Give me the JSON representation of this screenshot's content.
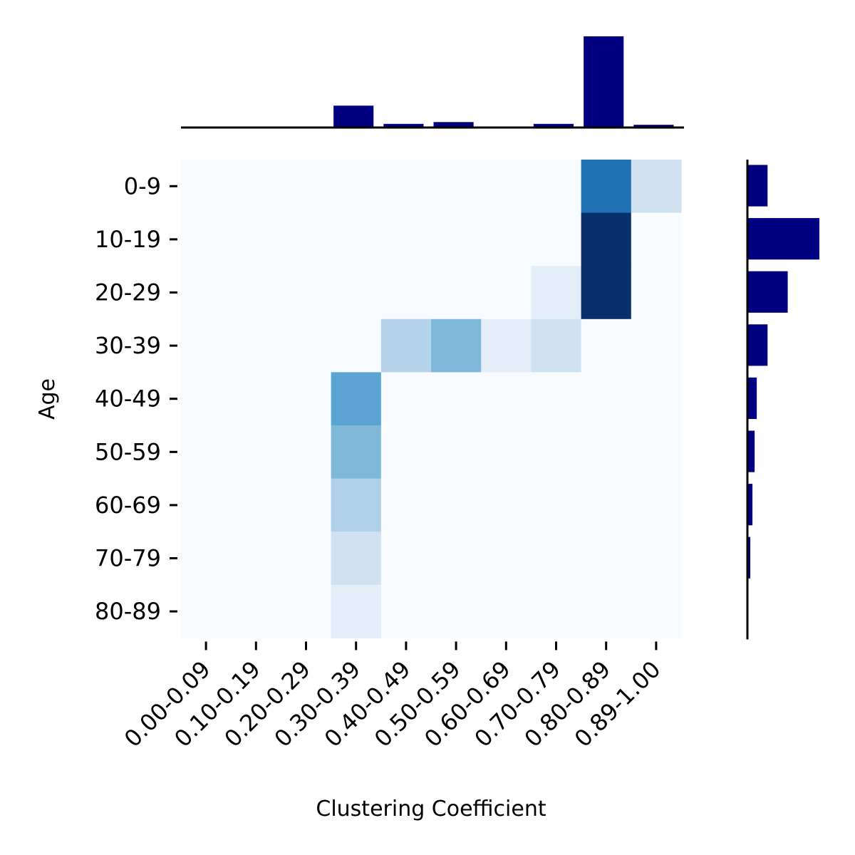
{
  "colors": {
    "hist_bar": "#000080",
    "heatmap_min": "#f7fbff",
    "heatmap_max": "#08306b",
    "axis": "#000000"
  },
  "chart_data": {
    "type": "heatmap",
    "xlabel": "Clustering Coefficient",
    "ylabel": "Age",
    "x_categories": [
      "0.00-0.09",
      "0.10-0.19",
      "0.20-0.29",
      "0.30-0.39",
      "0.40-0.49",
      "0.50-0.59",
      "0.60-0.69",
      "0.70-0.79",
      "0.80-0.89",
      "0.89-1.00"
    ],
    "y_categories": [
      "0-9",
      "10-19",
      "20-29",
      "30-39",
      "40-49",
      "50-59",
      "60-69",
      "70-79",
      "80-89"
    ],
    "colormap": "Blues",
    "heatmap_values": [
      [
        0,
        0,
        0,
        0,
        0,
        0,
        0,
        0,
        0.75,
        0.2
      ],
      [
        0,
        0,
        0,
        0,
        0,
        0,
        0,
        0,
        1.0,
        0
      ],
      [
        0,
        0,
        0,
        0,
        0,
        0,
        0,
        0.1,
        1.0,
        0
      ],
      [
        0,
        0,
        0,
        0,
        0.3,
        0.45,
        0.1,
        0.2,
        0,
        0
      ],
      [
        0,
        0,
        0,
        0.55,
        0,
        0,
        0,
        0,
        0,
        0
      ],
      [
        0,
        0,
        0,
        0.45,
        0,
        0,
        0,
        0,
        0,
        0
      ],
      [
        0,
        0,
        0,
        0.32,
        0,
        0,
        0,
        0,
        0,
        0
      ],
      [
        0,
        0,
        0,
        0.2,
        0,
        0,
        0,
        0,
        0,
        0
      ],
      [
        0,
        0,
        0,
        0.1,
        0,
        0,
        0,
        0,
        0,
        0
      ]
    ],
    "top_histogram": {
      "categories": [
        "0.00-0.09",
        "0.10-0.19",
        "0.20-0.29",
        "0.30-0.39",
        "0.40-0.49",
        "0.50-0.59",
        "0.60-0.69",
        "0.70-0.79",
        "0.80-0.89",
        "0.89-1.00"
      ],
      "values": [
        0,
        0,
        0,
        24,
        4,
        6,
        1,
        4,
        100,
        3
      ]
    },
    "right_histogram": {
      "categories": [
        "0-9",
        "10-19",
        "20-29",
        "30-39",
        "40-49",
        "50-59",
        "60-69",
        "70-79",
        "80-89"
      ],
      "values": [
        28,
        100,
        56,
        28,
        13,
        10,
        7,
        4,
        0
      ]
    }
  }
}
